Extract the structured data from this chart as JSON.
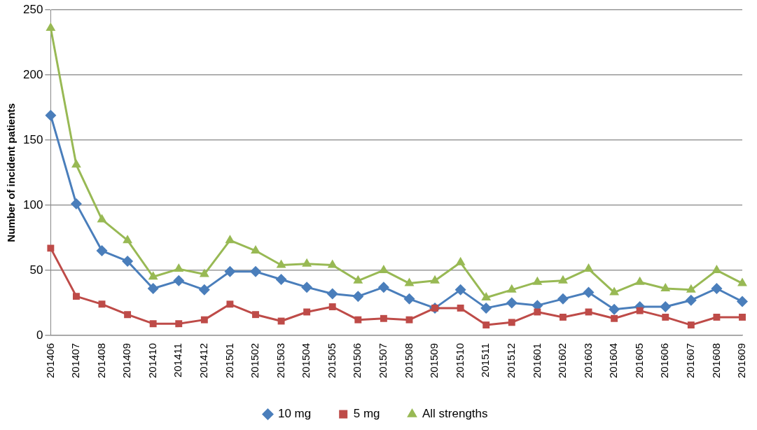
{
  "chart_data": {
    "type": "line",
    "ylabel": "Number of incident patients",
    "categories": [
      "201406",
      "201407",
      "201408",
      "201409",
      "201410",
      "201411",
      "201412",
      "201501",
      "201502",
      "201503",
      "201504",
      "201505",
      "201506",
      "201507",
      "201508",
      "201509",
      "201510",
      "201511",
      "201512",
      "201601",
      "201602",
      "201603",
      "201604",
      "201605",
      "201606",
      "201607",
      "201608",
      "201609"
    ],
    "series": [
      {
        "name": "10 mg",
        "color": "#4a7ebb",
        "marker": "diamond",
        "values": [
          169,
          101,
          65,
          57,
          36,
          42,
          35,
          49,
          49,
          43,
          37,
          32,
          30,
          37,
          28,
          21,
          35,
          21,
          25,
          23,
          28,
          33,
          20,
          22,
          22,
          27,
          36,
          26
        ]
      },
      {
        "name": "5 mg",
        "color": "#be4b48",
        "marker": "square",
        "values": [
          67,
          30,
          24,
          16,
          9,
          9,
          12,
          24,
          16,
          11,
          18,
          22,
          12,
          13,
          12,
          21,
          21,
          8,
          10,
          18,
          14,
          18,
          13,
          19,
          14,
          8,
          14,
          14
        ]
      },
      {
        "name": "All strengths",
        "color": "#98b954",
        "marker": "triangle",
        "values": [
          236,
          131,
          89,
          73,
          45,
          51,
          47,
          73,
          65,
          54,
          55,
          54,
          42,
          50,
          40,
          42,
          56,
          29,
          35,
          41,
          42,
          51,
          33,
          41,
          36,
          35,
          50,
          40
        ]
      }
    ],
    "ylim": [
      0,
      250
    ],
    "yticks": [
      0,
      50,
      100,
      150,
      200,
      250
    ],
    "grid": "y",
    "legend": "bottom",
    "line_style": "solid"
  }
}
